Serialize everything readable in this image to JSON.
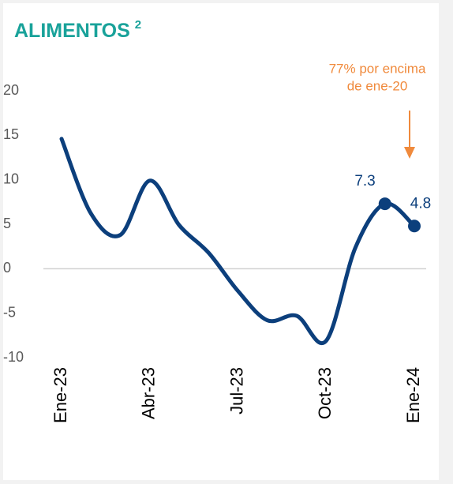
{
  "chart_data": {
    "type": "line",
    "title": "ALIMENTOS",
    "title_note": "2",
    "annotation": [
      "77% por encima",
      "de ene-20"
    ],
    "categories": [
      "Ene-23",
      null,
      null,
      "Abr-23",
      null,
      null,
      "Jul-23",
      null,
      null,
      "Oct-23",
      null,
      null,
      "Ene-24"
    ],
    "values": [
      14.6,
      6.2,
      3.8,
      9.9,
      4.9,
      1.8,
      -2.5,
      -5.8,
      -5.3,
      -8.1,
      2.4,
      7.3,
      4.8
    ],
    "markers": [
      false,
      false,
      false,
      false,
      false,
      false,
      false,
      false,
      false,
      false,
      false,
      true,
      true
    ],
    "color": "#0c3f7c",
    "ylim": [
      -10,
      20
    ],
    "yticks": [
      -10,
      -5,
      0,
      5,
      10,
      15,
      20
    ],
    "zero_line": true
  }
}
